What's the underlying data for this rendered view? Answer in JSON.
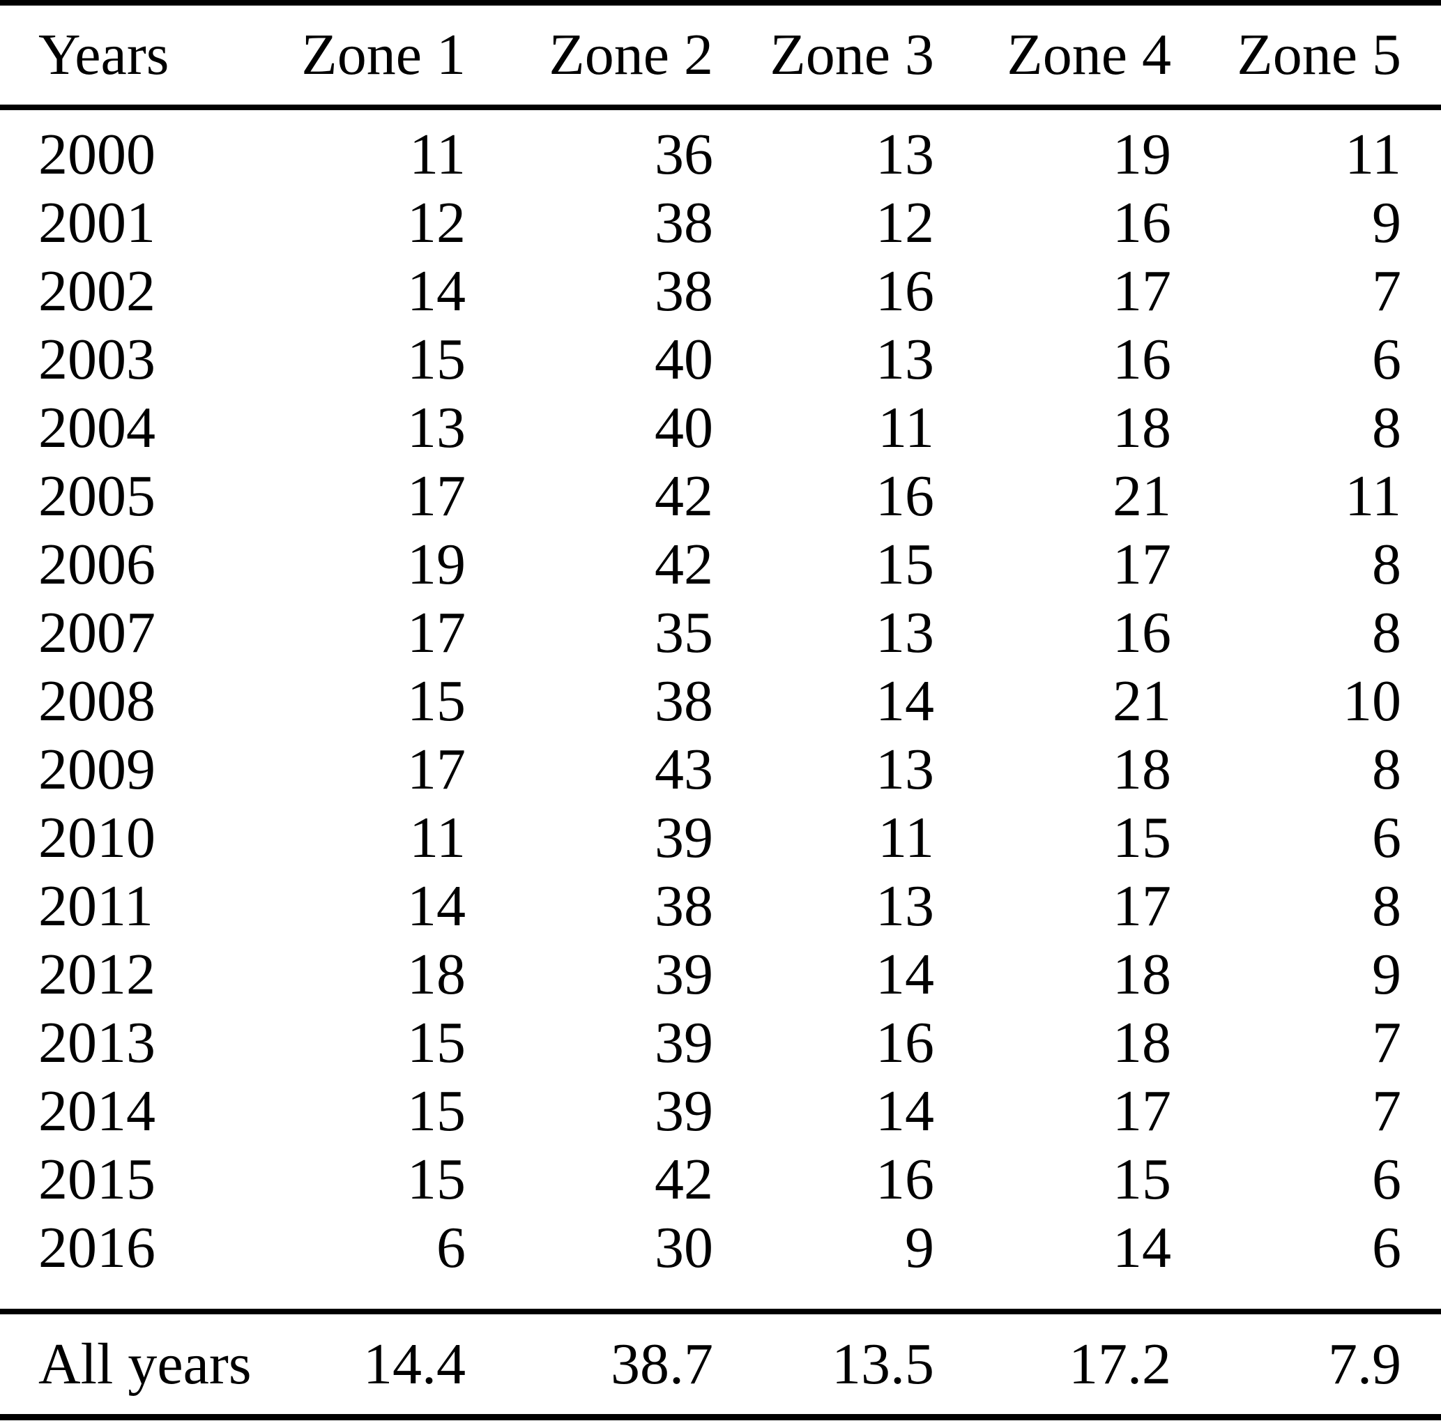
{
  "chart_data": {
    "type": "table",
    "title": "",
    "columns": [
      "Years",
      "Zone 1",
      "Zone 2",
      "Zone 3",
      "Zone 4",
      "Zone 5"
    ],
    "categories": [
      "2000",
      "2001",
      "2002",
      "2003",
      "2004",
      "2005",
      "2006",
      "2007",
      "2008",
      "2009",
      "2010",
      "2011",
      "2012",
      "2013",
      "2014",
      "2015",
      "2016"
    ],
    "series": [
      {
        "name": "Zone 1",
        "values": [
          11,
          12,
          14,
          15,
          13,
          17,
          19,
          17,
          15,
          17,
          11,
          14,
          18,
          15,
          15,
          15,
          6
        ]
      },
      {
        "name": "Zone 2",
        "values": [
          36,
          38,
          38,
          40,
          40,
          42,
          42,
          35,
          38,
          43,
          39,
          38,
          39,
          39,
          39,
          42,
          30
        ]
      },
      {
        "name": "Zone 3",
        "values": [
          13,
          12,
          16,
          13,
          11,
          16,
          15,
          13,
          14,
          13,
          11,
          13,
          14,
          16,
          14,
          16,
          9
        ]
      },
      {
        "name": "Zone 4",
        "values": [
          19,
          16,
          17,
          16,
          18,
          21,
          17,
          16,
          21,
          18,
          15,
          17,
          18,
          18,
          17,
          15,
          14
        ]
      },
      {
        "name": "Zone 5",
        "values": [
          11,
          9,
          7,
          6,
          8,
          11,
          8,
          8,
          10,
          8,
          6,
          8,
          9,
          7,
          7,
          6,
          6
        ]
      }
    ],
    "summary_row": {
      "label": "All years",
      "values": [
        "14.4",
        "38.7",
        "13.5",
        "17.2",
        "7.9"
      ]
    },
    "layout": {
      "grid": "horizontal-rules-only",
      "header_align": "right",
      "year_align": "left",
      "value_align": "right"
    }
  },
  "colors": {
    "background": "#ffffff",
    "text": "#000000",
    "rule": "#000000"
  }
}
